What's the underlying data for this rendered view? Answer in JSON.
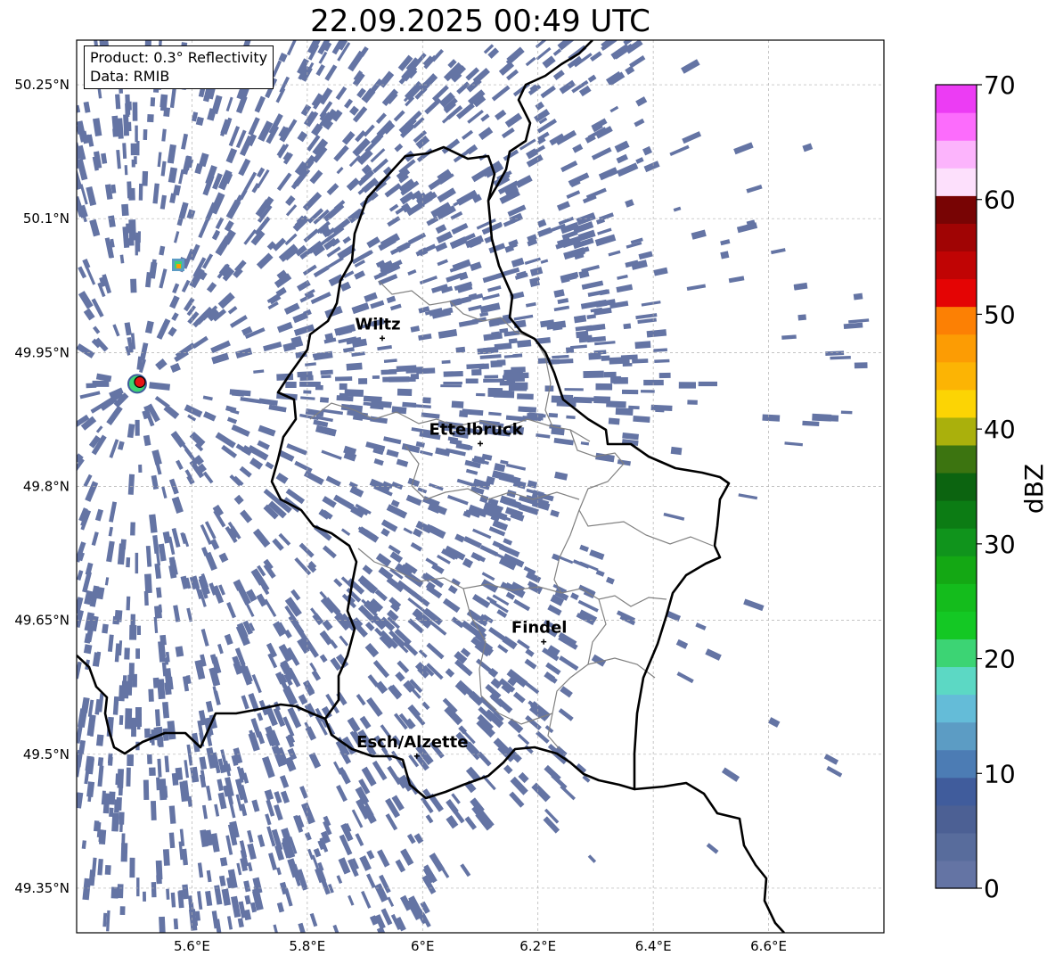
{
  "title": "22.09.2025 00:49 UTC",
  "info_box": {
    "product": "Product: 0.3° Reflectivity",
    "data": "Data: RMIB"
  },
  "lat_ticks": [
    "50.25°N",
    "50.1°N",
    "49.95°N",
    "49.8°N",
    "49.65°N",
    "49.5°N",
    "49.35°N"
  ],
  "lon_ticks": [
    "5.6°E",
    "5.8°E",
    "6°E",
    "6.2°E",
    "6.4°E",
    "6.6°E"
  ],
  "lat_values": [
    50.25,
    50.1,
    49.95,
    49.8,
    49.65,
    49.5,
    49.35
  ],
  "lon_values": [
    5.6,
    5.8,
    6.0,
    6.2,
    6.4,
    6.6
  ],
  "cities": [
    {
      "name": "Wiltz",
      "lon": 5.93,
      "lat": 49.966
    },
    {
      "name": "Ettelbruck",
      "lon": 6.1,
      "lat": 49.848
    },
    {
      "name": "Findel",
      "lon": 6.21,
      "lat": 49.626
    },
    {
      "name": "Esch/Alzette",
      "lon": 5.99,
      "lat": 49.498
    }
  ],
  "colorbar": {
    "label": "dBZ",
    "tick_labels": [
      "0",
      "10",
      "20",
      "30",
      "40",
      "50",
      "60",
      "70"
    ],
    "min": 0,
    "max": 70,
    "colors": [
      "#6474a4",
      "#586c9c",
      "#4c6094",
      "#405c9c",
      "#4c7cb4",
      "#5c9cc4",
      "#64bcd8",
      "#5cd8c4",
      "#3cd474",
      "#14c824",
      "#14bc1c",
      "#14a814",
      "#10941c",
      "#0c7c14",
      "#0c6410",
      "#3c7410",
      "#aab00c",
      "#fcd404",
      "#fcb404",
      "#fc9c04",
      "#fc8004",
      "#e40404",
      "#c00404",
      "#a00404",
      "#780404",
      "#fde0fc",
      "#fcb4fc",
      "#fc6cfc",
      "#ec3cf4"
    ]
  },
  "radar_site": {
    "lon": 5.505,
    "lat": 49.915
  },
  "colors": {
    "echo": "#6474a4",
    "border": "#000000",
    "district": "#808080",
    "radar_marker": "#e41414"
  }
}
